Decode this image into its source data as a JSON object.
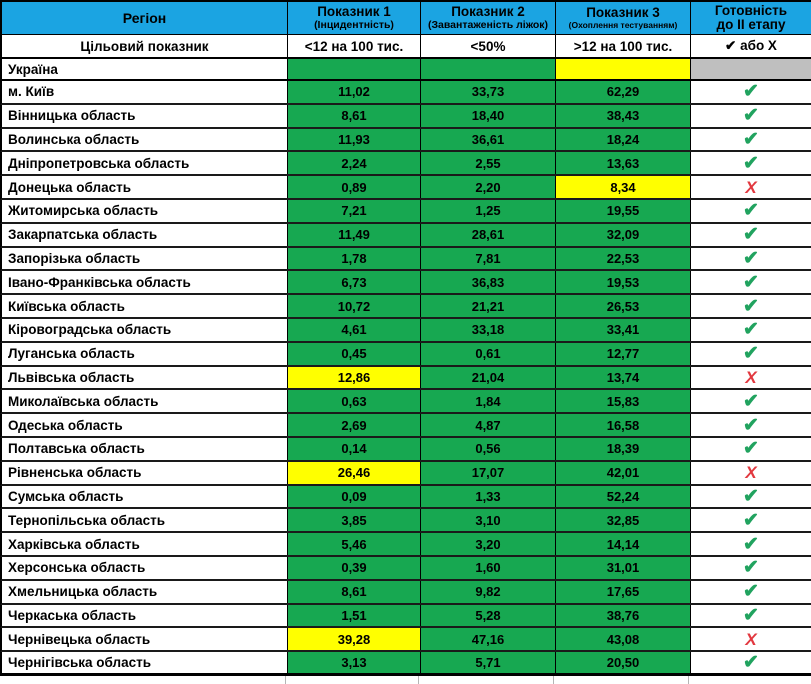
{
  "colors": {
    "header_blue": "#1ba4e2",
    "cell_green": "#17a851",
    "cell_yellow": "#ffff00",
    "cell_gray": "#bfbfbf",
    "check_green": "#21a35f",
    "x_red": "#e2383f"
  },
  "icons": {
    "check": "✔",
    "x": "Χ"
  },
  "header": {
    "region": "Регіон",
    "ind1": {
      "title": "Показник 1",
      "sub": "(Інцидентність)"
    },
    "ind2": {
      "title": "Показник 2",
      "sub": "(Завантаженість ліжок)"
    },
    "ind3": {
      "title": "Показник 3",
      "sub": "(Охоплення тестуванням)"
    },
    "ready": {
      "line1": "Готовність",
      "line2": "до ІІ етапу"
    }
  },
  "target": {
    "label": "Цільовий показник",
    "ind1": "<12 на 100 тис.",
    "ind2": "<50%",
    "ind3": ">12 на 100 тис.",
    "ready": "✔ або Χ"
  },
  "ukraine": {
    "label": "Україна",
    "p1_color": "green",
    "p2_color": "green",
    "p3_color": "yellow",
    "ready_color": "gray"
  },
  "rows": [
    {
      "region": "м. Київ",
      "p1": "11,02",
      "p2": "33,73",
      "p3": "62,29",
      "p1_color": "green",
      "p2_color": "green",
      "p3_color": "green",
      "ready": "check"
    },
    {
      "region": "Вінницька область",
      "p1": "8,61",
      "p2": "18,40",
      "p3": "38,43",
      "p1_color": "green",
      "p2_color": "green",
      "p3_color": "green",
      "ready": "check"
    },
    {
      "region": "Волинська область",
      "p1": "11,93",
      "p2": "36,61",
      "p3": "18,24",
      "p1_color": "green",
      "p2_color": "green",
      "p3_color": "green",
      "ready": "check"
    },
    {
      "region": "Дніпропетровська область",
      "p1": "2,24",
      "p2": "2,55",
      "p3": "13,63",
      "p1_color": "green",
      "p2_color": "green",
      "p3_color": "green",
      "ready": "check"
    },
    {
      "region": "Донецька область",
      "p1": "0,89",
      "p2": "2,20",
      "p3": "8,34",
      "p1_color": "green",
      "p2_color": "green",
      "p3_color": "yellow",
      "ready": "x"
    },
    {
      "region": "Житомирська область",
      "p1": "7,21",
      "p2": "1,25",
      "p3": "19,55",
      "p1_color": "green",
      "p2_color": "green",
      "p3_color": "green",
      "ready": "check"
    },
    {
      "region": "Закарпатська область",
      "p1": "11,49",
      "p2": "28,61",
      "p3": "32,09",
      "p1_color": "green",
      "p2_color": "green",
      "p3_color": "green",
      "ready": "check"
    },
    {
      "region": "Запорізька область",
      "p1": "1,78",
      "p2": "7,81",
      "p3": "22,53",
      "p1_color": "green",
      "p2_color": "green",
      "p3_color": "green",
      "ready": "check"
    },
    {
      "region": "Івано-Франківська область",
      "p1": "6,73",
      "p2": "36,83",
      "p3": "19,53",
      "p1_color": "green",
      "p2_color": "green",
      "p3_color": "green",
      "ready": "check"
    },
    {
      "region": "Київська область",
      "p1": "10,72",
      "p2": "21,21",
      "p3": "26,53",
      "p1_color": "green",
      "p2_color": "green",
      "p3_color": "green",
      "ready": "check"
    },
    {
      "region": "Кіровоградська область",
      "p1": "4,61",
      "p2": "33,18",
      "p3": "33,41",
      "p1_color": "green",
      "p2_color": "green",
      "p3_color": "green",
      "ready": "check"
    },
    {
      "region": "Луганська область",
      "p1": "0,45",
      "p2": "0,61",
      "p3": "12,77",
      "p1_color": "green",
      "p2_color": "green",
      "p3_color": "green",
      "ready": "check"
    },
    {
      "region": "Львівська область",
      "p1": "12,86",
      "p2": "21,04",
      "p3": "13,74",
      "p1_color": "yellow",
      "p2_color": "green",
      "p3_color": "green",
      "ready": "x"
    },
    {
      "region": "Миколаївська область",
      "p1": "0,63",
      "p2": "1,84",
      "p3": "15,83",
      "p1_color": "green",
      "p2_color": "green",
      "p3_color": "green",
      "ready": "check"
    },
    {
      "region": "Одеська область",
      "p1": "2,69",
      "p2": "4,87",
      "p3": "16,58",
      "p1_color": "green",
      "p2_color": "green",
      "p3_color": "green",
      "ready": "check"
    },
    {
      "region": "Полтавська область",
      "p1": "0,14",
      "p2": "0,56",
      "p3": "18,39",
      "p1_color": "green",
      "p2_color": "green",
      "p3_color": "green",
      "ready": "check"
    },
    {
      "region": "Рівненська область",
      "p1": "26,46",
      "p2": "17,07",
      "p3": "42,01",
      "p1_color": "yellow",
      "p2_color": "green",
      "p3_color": "green",
      "ready": "x"
    },
    {
      "region": "Сумська область",
      "p1": "0,09",
      "p2": "1,33",
      "p3": "52,24",
      "p1_color": "green",
      "p2_color": "green",
      "p3_color": "green",
      "ready": "check"
    },
    {
      "region": "Тернопільська область",
      "p1": "3,85",
      "p2": "3,10",
      "p3": "32,85",
      "p1_color": "green",
      "p2_color": "green",
      "p3_color": "green",
      "ready": "check"
    },
    {
      "region": "Харківська область",
      "p1": "5,46",
      "p2": "3,20",
      "p3": "14,14",
      "p1_color": "green",
      "p2_color": "green",
      "p3_color": "green",
      "ready": "check"
    },
    {
      "region": "Херсонська область",
      "p1": "0,39",
      "p2": "1,60",
      "p3": "31,01",
      "p1_color": "green",
      "p2_color": "green",
      "p3_color": "green",
      "ready": "check"
    },
    {
      "region": "Хмельницька область",
      "p1": "8,61",
      "p2": "9,82",
      "p3": "17,65",
      "p1_color": "green",
      "p2_color": "green",
      "p3_color": "green",
      "ready": "check"
    },
    {
      "region": "Черкаська область",
      "p1": "1,51",
      "p2": "5,28",
      "p3": "38,76",
      "p1_color": "green",
      "p2_color": "green",
      "p3_color": "green",
      "ready": "check"
    },
    {
      "region": "Чернівецька область",
      "p1": "39,28",
      "p2": "47,16",
      "p3": "43,08",
      "p1_color": "yellow",
      "p2_color": "green",
      "p3_color": "green",
      "ready": "x"
    },
    {
      "region": "Чернігівська область",
      "p1": "3,13",
      "p2": "5,71",
      "p3": "20,50",
      "p1_color": "green",
      "p2_color": "green",
      "p3_color": "green",
      "ready": "check"
    }
  ]
}
